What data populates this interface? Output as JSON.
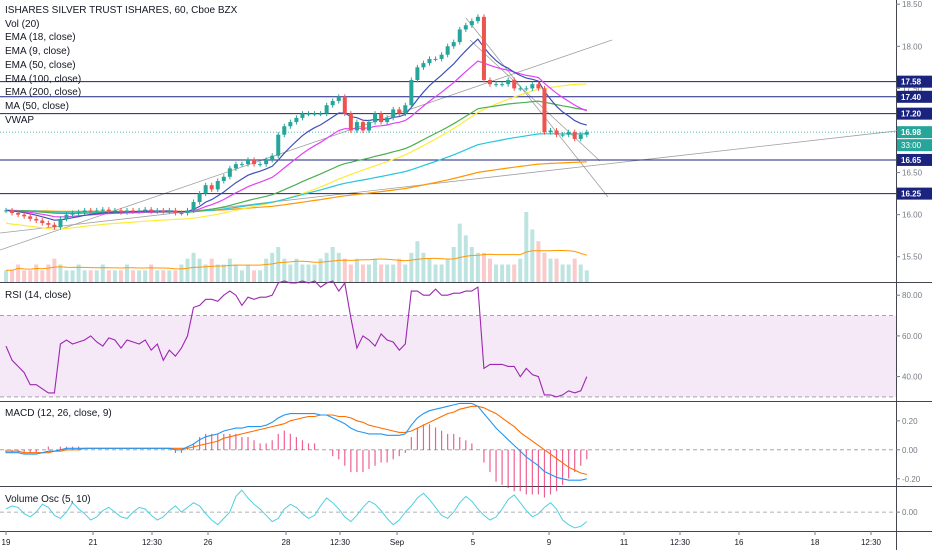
{
  "header": {
    "title": "ISHARES SILVER TRUST ISHARES, 60, Cboe BZX",
    "indicators": [
      "Vol (20)",
      "EMA (18, close)",
      "EMA (9, close)",
      "EMA (50, close)",
      "EMA (100, close)",
      "EMA (200, close)",
      "MA (50, close)",
      "VWAP"
    ]
  },
  "colors": {
    "up": "#26a69a",
    "down": "#ef5350",
    "ema9": "#3f51b5",
    "ema18": "#e040fb",
    "ema50": "#4caf50",
    "ema100": "#26c6da",
    "ema200": "#ff9800",
    "ma50": "#ffeb3b",
    "rsi": "#9c27b0",
    "macd": "#2196f3",
    "signal": "#ff6d00",
    "volosc": "#4dd0e1",
    "hline": "#1a237e",
    "trend": "#a0a0a0",
    "current": "#26a69a"
  },
  "panes": {
    "rsi_label": "RSI (14, close)",
    "macd_label": "MACD (12, 26, close, 9)",
    "volosc_label": "Volume Osc (5, 10)"
  },
  "x_labels": [
    "19",
    "21",
    "12:30",
    "26",
    "28",
    "12:30",
    "Sep",
    "5",
    "9",
    "11",
    "12:30",
    "16",
    "18",
    "12:30"
  ],
  "chart_data": [
    {
      "type": "candlestick",
      "y_ticks": [
        "18.50",
        "18.00",
        "17.50",
        "17.00",
        "16.50",
        "16.00",
        "15.50"
      ],
      "ylim": [
        15.2,
        18.55
      ],
      "close": [
        16.05,
        16.02,
        16.0,
        15.98,
        15.95,
        15.93,
        15.9,
        15.88,
        15.85,
        15.95,
        16.0,
        16.02,
        16.03,
        16.05,
        16.04,
        16.05,
        16.06,
        16.04,
        16.05,
        16.03,
        16.05,
        16.04,
        16.05,
        16.06,
        16.04,
        16.05,
        16.04,
        16.05,
        16.02,
        16.02,
        16.05,
        16.15,
        16.25,
        16.35,
        16.3,
        16.4,
        16.45,
        16.55,
        16.6,
        16.6,
        16.65,
        16.6,
        16.6,
        16.65,
        16.7,
        16.95,
        17.05,
        17.1,
        17.15,
        17.2,
        17.2,
        17.2,
        17.2,
        17.3,
        17.35,
        17.4,
        17.2,
        17.0,
        17.1,
        17.0,
        17.1,
        17.2,
        17.1,
        17.15,
        17.25,
        17.2,
        17.3,
        17.6,
        17.75,
        17.8,
        17.85,
        17.85,
        17.9,
        18.0,
        18.05,
        18.2,
        18.25,
        18.3,
        18.35,
        17.6,
        17.55,
        17.55,
        17.55,
        17.6,
        17.5,
        17.5,
        17.5,
        17.55,
        17.5,
        16.98,
        17.0,
        16.95,
        16.95,
        16.98,
        16.9,
        16.95,
        16.98
      ],
      "hlines": [
        17.58,
        17.4,
        17.2,
        16.98,
        16.65,
        16.25
      ],
      "price_labels": [
        "17.58",
        "17.40",
        "17.20",
        "16.98",
        "16.65",
        "16.25"
      ],
      "countdown": "33:00",
      "volume": [
        2,
        2,
        3,
        2,
        2,
        3,
        2,
        3,
        4,
        3,
        2,
        2,
        3,
        2,
        2,
        2,
        3,
        2,
        2,
        2,
        3,
        2,
        2,
        2,
        3,
        2,
        2,
        2,
        2,
        3,
        4,
        5,
        4,
        3,
        4,
        3,
        3,
        4,
        3,
        2,
        3,
        2,
        2,
        4,
        5,
        6,
        4,
        3,
        4,
        3,
        3,
        3,
        4,
        5,
        6,
        5,
        4,
        3,
        4,
        3,
        3,
        4,
        3,
        3,
        3,
        4,
        3,
        5,
        7,
        5,
        4,
        3,
        3,
        4,
        6,
        10,
        8,
        6,
        5,
        5,
        4,
        3,
        3,
        3,
        3,
        4,
        12,
        9,
        7,
        5,
        4,
        4,
        3,
        3,
        4,
        3,
        2
      ]
    },
    {
      "type": "line",
      "name": "RSI",
      "y_ticks": [
        "80.00",
        "60.00",
        "40.00"
      ],
      "ylim": [
        28,
        86
      ],
      "values": [
        55,
        48,
        45,
        42,
        36,
        36,
        34,
        32,
        32,
        56,
        58,
        56,
        57,
        58,
        60,
        57,
        55,
        59,
        58,
        54,
        58,
        57,
        56,
        58,
        53,
        56,
        48,
        53,
        50,
        54,
        60,
        74,
        75,
        78,
        78,
        77,
        80,
        82,
        80,
        75,
        79,
        78,
        79,
        79,
        80,
        86,
        87,
        86,
        86,
        87,
        86,
        87,
        84,
        86,
        87,
        82,
        86,
        69,
        54,
        60,
        58,
        55,
        61,
        58,
        57,
        53,
        56,
        82,
        82,
        80,
        80,
        83,
        80,
        80,
        81,
        81,
        82,
        82,
        84,
        44,
        46,
        46,
        46,
        45,
        45,
        40,
        44,
        41,
        40,
        31,
        31,
        30,
        31,
        33,
        32,
        33,
        40
      ]
    },
    {
      "type": "line",
      "name": "MACD",
      "y_ticks": [
        "0.20",
        "0.00",
        "-0.20"
      ],
      "ylim": [
        -0.25,
        0.33
      ],
      "macd": [
        -0.02,
        -0.02,
        -0.02,
        -0.03,
        -0.03,
        -0.03,
        -0.02,
        -0.01,
        -0.01,
        0.0,
        0.01,
        0.01,
        0.01,
        0.01,
        0.01,
        0.01,
        0.01,
        0.01,
        0.01,
        0.01,
        0.01,
        0.01,
        0.01,
        0.01,
        0.01,
        0.01,
        0.01,
        0.01,
        0.0,
        0.0,
        0.02,
        0.04,
        0.07,
        0.09,
        0.1,
        0.11,
        0.13,
        0.14,
        0.15,
        0.15,
        0.16,
        0.16,
        0.16,
        0.17,
        0.19,
        0.22,
        0.24,
        0.25,
        0.25,
        0.25,
        0.25,
        0.25,
        0.24,
        0.24,
        0.22,
        0.2,
        0.18,
        0.15,
        0.13,
        0.12,
        0.11,
        0.11,
        0.11,
        0.1,
        0.1,
        0.1,
        0.11,
        0.17,
        0.22,
        0.25,
        0.27,
        0.28,
        0.29,
        0.3,
        0.31,
        0.32,
        0.32,
        0.32,
        0.3,
        0.25,
        0.2,
        0.15,
        0.11,
        0.07,
        0.03,
        -0.01,
        -0.05,
        -0.08,
        -0.11,
        -0.15,
        -0.17,
        -0.19,
        -0.2,
        -0.21,
        -0.21,
        -0.21,
        -0.2
      ],
      "signal": [
        -0.01,
        -0.01,
        -0.01,
        -0.02,
        -0.02,
        -0.02,
        -0.02,
        -0.02,
        -0.01,
        -0.01,
        0.0,
        0.0,
        0.0,
        0.01,
        0.01,
        0.01,
        0.01,
        0.01,
        0.01,
        0.01,
        0.01,
        0.01,
        0.01,
        0.01,
        0.01,
        0.01,
        0.01,
        0.01,
        0.01,
        0.01,
        0.01,
        0.02,
        0.03,
        0.04,
        0.05,
        0.06,
        0.08,
        0.09,
        0.1,
        0.11,
        0.12,
        0.13,
        0.14,
        0.15,
        0.16,
        0.17,
        0.18,
        0.2,
        0.21,
        0.22,
        0.23,
        0.23,
        0.24,
        0.24,
        0.24,
        0.23,
        0.23,
        0.22,
        0.2,
        0.19,
        0.17,
        0.16,
        0.15,
        0.14,
        0.13,
        0.12,
        0.12,
        0.13,
        0.15,
        0.17,
        0.19,
        0.21,
        0.23,
        0.25,
        0.26,
        0.28,
        0.29,
        0.3,
        0.3,
        0.29,
        0.27,
        0.25,
        0.22,
        0.19,
        0.16,
        0.12,
        0.09,
        0.06,
        0.03,
        0.0,
        -0.03,
        -0.06,
        -0.09,
        -0.12,
        -0.14,
        -0.16,
        -0.17
      ]
    },
    {
      "type": "line",
      "name": "Volume Osc",
      "y_ticks": [
        "0.00"
      ],
      "ylim": [
        -12,
        16
      ],
      "values": [
        2,
        4,
        3,
        -1,
        -3,
        0,
        5,
        3,
        -2,
        -4,
        0,
        6,
        2,
        -1,
        -5,
        -3,
        1,
        3,
        0,
        -3,
        -4,
        0,
        3,
        2,
        -2,
        -5,
        -3,
        1,
        4,
        0,
        3,
        6,
        4,
        -1,
        -5,
        -8,
        -4,
        0,
        10,
        14,
        9,
        5,
        2,
        -2,
        -6,
        -4,
        2,
        5,
        3,
        -1,
        -4,
        -2,
        4,
        9,
        6,
        2,
        -3,
        -6,
        -2,
        3,
        7,
        5,
        1,
        -4,
        -8,
        -5,
        0,
        4,
        9,
        12,
        8,
        3,
        -2,
        -4,
        0,
        6,
        10,
        7,
        2,
        -2,
        -5,
        -3,
        2,
        8,
        11,
        6,
        1,
        -3,
        -1,
        3,
        6,
        2,
        -5,
        -8,
        -10,
        -9,
        -6
      ]
    }
  ]
}
